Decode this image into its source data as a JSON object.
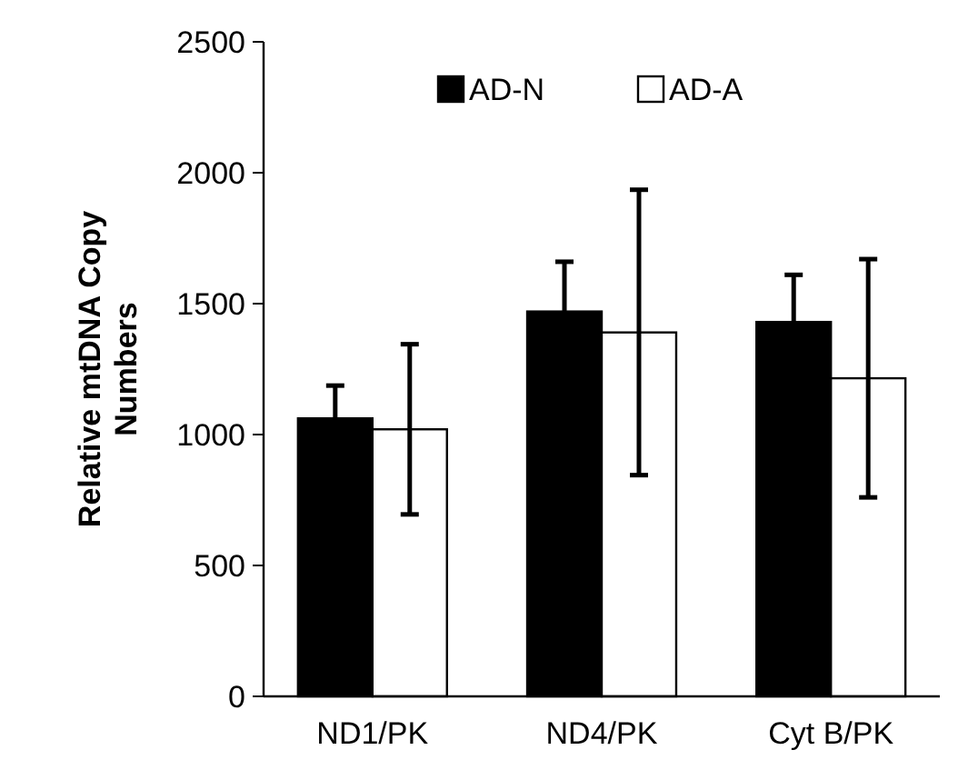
{
  "chart_data": {
    "type": "bar",
    "ylabel": "Relative mtDNA Copy Numbers",
    "categories": [
      "ND1/PK",
      "ND4/PK",
      "Cyt B/PK"
    ],
    "series": [
      {
        "name": "AD-N",
        "color": "#000000",
        "values": [
          1062,
          1470,
          1430
        ],
        "errors": [
          125,
          190,
          180
        ]
      },
      {
        "name": "AD-A",
        "color": "#ffffff",
        "values": [
          1020,
          1390,
          1215
        ],
        "errors": [
          325,
          545,
          455
        ]
      }
    ],
    "ylim": [
      0,
      2500
    ],
    "yticks": [
      0,
      500,
      1000,
      1500,
      2000,
      2500
    ],
    "grid": false,
    "legend": "top"
  }
}
